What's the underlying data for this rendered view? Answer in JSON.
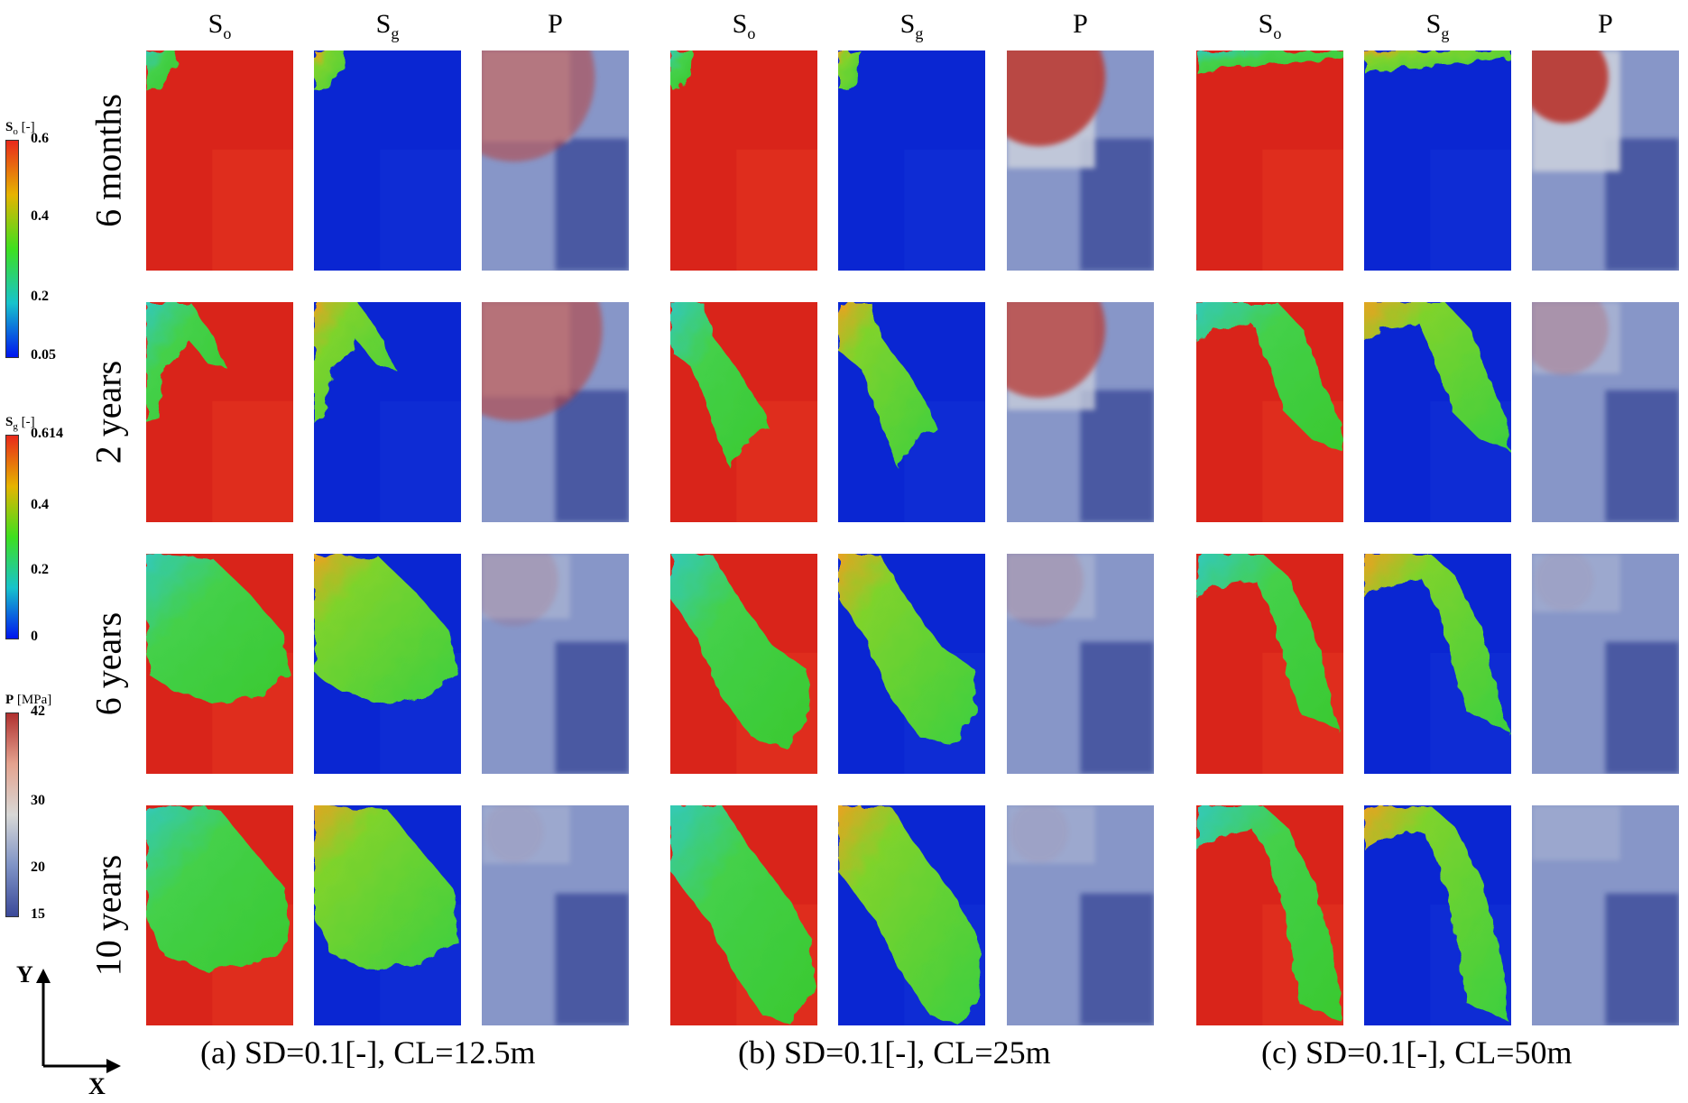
{
  "column_headers": [
    {
      "main": "S",
      "sub": "o"
    },
    {
      "main": "S",
      "sub": "g"
    },
    {
      "main": "P",
      "sub": ""
    },
    {
      "main": "S",
      "sub": "o"
    },
    {
      "main": "S",
      "sub": "g"
    },
    {
      "main": "P",
      "sub": ""
    },
    {
      "main": "S",
      "sub": "o"
    },
    {
      "main": "S",
      "sub": "g"
    },
    {
      "main": "P",
      "sub": ""
    }
  ],
  "row_labels": [
    "6 months",
    "2 years",
    "6 years",
    "10 years"
  ],
  "captions": [
    "(a) SD=0.1[-], CL=12.5m",
    "(b) SD=0.1[-], CL=25m",
    "(c) SD=0.1[-], CL=50m"
  ],
  "colorbars": [
    {
      "id": "so",
      "symbol": "S",
      "sub": "o",
      "unit": "[-]",
      "ticks": [
        "0.6",
        "0.4",
        "0.2",
        "0.05"
      ],
      "stops": [
        "#e8291b",
        "#e6b400",
        "#3ee01f",
        "#17c3cc",
        "#0015ee"
      ]
    },
    {
      "id": "sg",
      "symbol": "S",
      "sub": "g",
      "unit": "[-]",
      "ticks": [
        "0.614",
        "0.4",
        "0.2",
        "0"
      ],
      "stops": [
        "#e8291b",
        "#e6b400",
        "#3ee01f",
        "#17c3cc",
        "#0015ee"
      ]
    },
    {
      "id": "p",
      "symbol": "P",
      "sub": "",
      "unit": "[MPa]",
      "ticks": [
        "42",
        "30",
        "20",
        "15"
      ],
      "stops": [
        "#b0302f",
        "#e4a38f",
        "#d8d8d6",
        "#7f93c6",
        "#3b4999"
      ]
    }
  ],
  "axes": {
    "y": "Y",
    "x": "X"
  },
  "colors": {
    "oil_red": "#d9241a",
    "gas_blue": "#0a26d2",
    "plume_green": "#4fce3a",
    "cyan": "#2fc9c4",
    "pressure_high": "#b9423c",
    "pressure_mid": "#c9cfdc",
    "pressure_low": "#3f4f9c"
  }
}
